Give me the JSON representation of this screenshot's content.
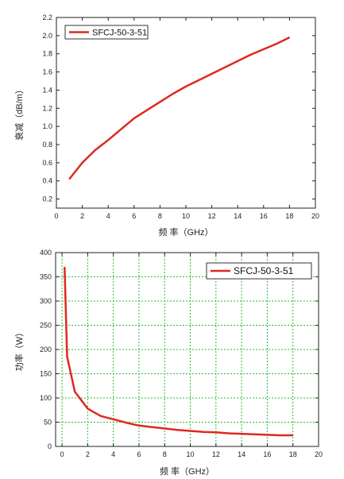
{
  "chart_data": [
    {
      "type": "line",
      "title": "",
      "xlabel": "频 率（GHz）",
      "ylabel": "衰减（dB/m）",
      "xlim": [
        0,
        20
      ],
      "ylim": [
        0.1,
        2.2
      ],
      "xticks": [
        0,
        2,
        4,
        6,
        8,
        10,
        12,
        14,
        16,
        18,
        20
      ],
      "yticks": [
        0.2,
        0.4,
        0.6,
        0.8,
        1.0,
        1.2,
        1.4,
        1.6,
        1.8,
        2.0,
        2.2
      ],
      "ytick_labels": [
        "0.2",
        "0.4",
        "0.6",
        "0.8",
        "1.0",
        "1.2",
        "1.4",
        "1.6",
        "1.8",
        "2.0",
        "2.2"
      ],
      "grid": false,
      "legend": "top-left",
      "series": [
        {
          "name": "SFCJ-50-3-51",
          "color": "#e0281f",
          "x": [
            1,
            2,
            3,
            4,
            5,
            6,
            7,
            8,
            9,
            10,
            11,
            12,
            13,
            14,
            15,
            16,
            17,
            18
          ],
          "y": [
            0.42,
            0.6,
            0.74,
            0.85,
            0.97,
            1.09,
            1.18,
            1.27,
            1.36,
            1.44,
            1.51,
            1.58,
            1.65,
            1.72,
            1.79,
            1.85,
            1.91,
            1.98
          ]
        }
      ]
    },
    {
      "type": "line",
      "title": "",
      "xlabel": "频 率（GHz）",
      "ylabel": "功率（W）",
      "xlim": [
        -0.5,
        20
      ],
      "ylim": [
        0,
        400
      ],
      "xticks": [
        0,
        2,
        4,
        6,
        8,
        10,
        12,
        14,
        16,
        18,
        20
      ],
      "yticks": [
        0,
        50,
        100,
        150,
        200,
        250,
        300,
        350,
        400
      ],
      "grid": true,
      "grid_color": "#2dbb2d",
      "legend": "top-right",
      "series": [
        {
          "name": "SFCJ-50-3-51",
          "color": "#e0281f",
          "x": [
            0.2,
            0.4,
            1,
            2,
            3,
            4,
            5,
            6,
            7,
            8,
            9,
            10,
            11,
            12,
            13,
            14,
            15,
            16,
            17,
            18
          ],
          "y": [
            370,
            185,
            113,
            78,
            63,
            56,
            49,
            43,
            40,
            37,
            34,
            32,
            30,
            29,
            27,
            26,
            25,
            24,
            23,
            23
          ]
        }
      ]
    }
  ]
}
